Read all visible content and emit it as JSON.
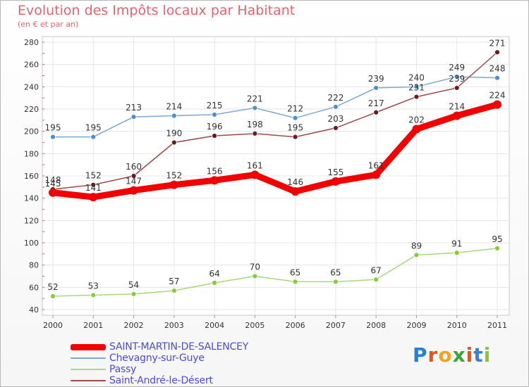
{
  "title": "Evolution des Impôts locaux par Habitant",
  "subtitle": "(en € et par an)",
  "logo_text": "Proxiti",
  "chart_data": {
    "type": "line",
    "title": "Evolution des Impôts locaux par Habitant",
    "subtitle": "(en € et par an)",
    "xlabel": "",
    "ylabel": "",
    "x": [
      "2000",
      "2001",
      "2002",
      "2003",
      "2004",
      "2005",
      "2006",
      "2007",
      "2008",
      "2009",
      "2010",
      "2011"
    ],
    "ylim": [
      40,
      280
    ],
    "yticks": [
      40,
      60,
      80,
      100,
      120,
      140,
      160,
      180,
      200,
      220,
      240,
      260,
      280
    ],
    "grid": true,
    "legend_position": "bottom-left",
    "series": [
      {
        "name": "Chevagny-sur-Guye",
        "color": "#7ea9cf",
        "marker_color": "#4a8fd0",
        "values": [
          195,
          195,
          213,
          214,
          215,
          221,
          212,
          222,
          239,
          240,
          249,
          248
        ]
      },
      {
        "name": "Passy",
        "color": "#a8d878",
        "marker_color": "#86cc3a",
        "values": [
          52,
          53,
          54,
          57,
          64,
          70,
          65,
          65,
          67,
          89,
          91,
          95
        ]
      },
      {
        "name": "Saint-André-le-Désert",
        "color": "#9a4a4a",
        "marker_color": "#6a1c1c",
        "values": [
          148,
          152,
          160,
          190,
          196,
          198,
          195,
          203,
          217,
          231,
          239,
          271
        ]
      },
      {
        "name": "SAINT-MARTIN-DE-SALENCEY",
        "color": "#f20000",
        "marker_color": "#f20000",
        "values": [
          145,
          141,
          147,
          152,
          156,
          161,
          146,
          155,
          161,
          202,
          214,
          224
        ]
      }
    ],
    "legend_order": [
      "SAINT-MARTIN-DE-SALENCEY",
      "Chevagny-sur-Guye",
      "Passy",
      "Saint-André-le-Désert"
    ]
  }
}
